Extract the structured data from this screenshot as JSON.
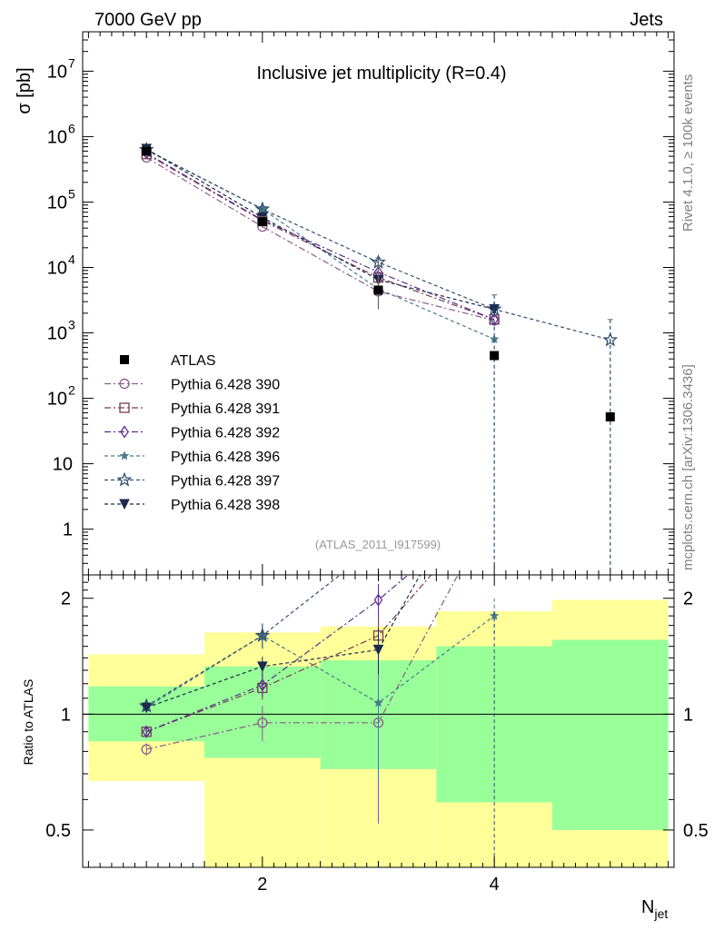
{
  "header": {
    "energy": "7000 GeV pp",
    "category": "Jets"
  },
  "side_labels": {
    "rivet": "Rivet 4.1.0, ≥ 100k events",
    "source": "mcplots.cern.ch [arXiv:1306.3436]"
  },
  "chart_data": {
    "type": "scatter",
    "title": "Inclusive jet multiplicity (R=0.4)",
    "analysis_id": "(ATLAS_2011_I917599)",
    "xlabel_main": "N",
    "xlabel_sub": "jet",
    "ylabel": "σ [pb]",
    "ratio_ylabel": "Ratio to ATLAS",
    "xlim": [
      0.45,
      5.55
    ],
    "ylim_main": [
      0.2,
      40000000
    ],
    "ylim_ratio": [
      0.4,
      2.3
    ],
    "x_ticks": [
      {
        "v": 2,
        "label": "2"
      },
      {
        "v": 4,
        "label": "4"
      }
    ],
    "y_ticks_main": [
      {
        "v": 1,
        "label": "1"
      },
      {
        "v": 10,
        "label": "10"
      },
      {
        "v": 100,
        "label": "10",
        "sup": "2"
      },
      {
        "v": 1000,
        "label": "10",
        "sup": "3"
      },
      {
        "v": 10000,
        "label": "10",
        "sup": "4"
      },
      {
        "v": 100000,
        "label": "10",
        "sup": "5"
      },
      {
        "v": 1000000,
        "label": "10",
        "sup": "6"
      },
      {
        "v": 10000000,
        "label": "10",
        "sup": "7"
      }
    ],
    "y_ticks_ratio": [
      {
        "v": 0.5,
        "label": "0.5"
      },
      {
        "v": 1,
        "label": "1"
      },
      {
        "v": 2,
        "label": "2"
      }
    ],
    "ratio_bands": [
      {
        "x0": 0.5,
        "x1": 1.5,
        "lo1": 0.85,
        "hi1": 1.18,
        "lo2": 0.67,
        "hi2": 1.43
      },
      {
        "x0": 1.5,
        "x1": 2.5,
        "lo1": 0.77,
        "hi1": 1.33,
        "lo2": 0.39,
        "hi2": 1.63
      },
      {
        "x0": 2.5,
        "x1": 3.5,
        "lo1": 0.72,
        "hi1": 1.38,
        "lo2": 0.37,
        "hi2": 1.69
      },
      {
        "x0": 3.5,
        "x1": 4.5,
        "lo1": 0.59,
        "hi1": 1.5,
        "lo2": 0.34,
        "hi2": 1.85
      },
      {
        "x0": 4.5,
        "x1": 5.5,
        "lo1": 0.5,
        "hi1": 1.56,
        "lo2": 0.34,
        "hi2": 1.98
      }
    ],
    "band_colors": {
      "inner": "#99ff99",
      "outer": "#ffff99"
    },
    "data": {
      "name": "ATLAS",
      "x": [
        1,
        2,
        3,
        4,
        5
      ],
      "y": [
        600000,
        50000,
        4500,
        450,
        52
      ]
    },
    "series": [
      {
        "name": "Pythia 6.428 390",
        "color": "#8b5a8b",
        "marker": "circle",
        "dash": "7,3,2,3",
        "x": [
          1,
          2,
          3,
          4
        ],
        "y": [
          480000,
          42000,
          4300,
          1550
        ],
        "ratio": [
          0.81,
          0.95,
          0.95,
          3.45
        ],
        "ratio_err": [
          0.03,
          0.1,
          0.43,
          0.6
        ]
      },
      {
        "name": "Pythia 6.428 391",
        "color": "#7a3b52",
        "marker": "square",
        "dash": "7,3,2,3",
        "x": [
          1,
          2,
          3,
          4
        ],
        "y": [
          540000,
          52000,
          7000,
          1600
        ],
        "ratio": [
          0.9,
          1.17,
          1.6,
          3.55
        ],
        "ratio_err": [
          0.03,
          0.08,
          0.2,
          0.6
        ]
      },
      {
        "name": "Pythia 6.428 392",
        "color": "#5c2d91",
        "marker": "diamond",
        "dash": "7,3,2,3",
        "x": [
          1,
          2,
          3,
          4
        ],
        "y": [
          560000,
          53000,
          8500,
          1600
        ],
        "ratio": [
          0.9,
          1.19,
          1.98,
          3.55
        ],
        "ratio_err": [
          0.03,
          0.08,
          0.2,
          0.6
        ]
      },
      {
        "name": "Pythia 6.428 396",
        "color": "#4a7a8c",
        "marker": "star-small",
        "dash": "4,3",
        "x": [
          1,
          2,
          3,
          4
        ],
        "y": [
          620000,
          78000,
          4700,
          800
        ],
        "ratio": [
          1.04,
          1.6,
          1.07,
          1.8
        ],
        "ratio_err": [
          0.03,
          0.12,
          0.4,
          0.2
        ]
      },
      {
        "name": "Pythia 6.428 397",
        "color": "#2f4f6f",
        "marker": "star",
        "dash": "4,3",
        "x": [
          1,
          2,
          3,
          4,
          5
        ],
        "y": [
          630000,
          78000,
          12000,
          2300,
          780
        ],
        "ratio": [
          1.05,
          1.6,
          2.75,
          5.1,
          15.0
        ],
        "ratio_err": [
          0.03,
          0.12,
          0.3,
          0.6,
          2.0
        ]
      },
      {
        "name": "Pythia 6.428 398",
        "color": "#1c2a4f",
        "marker": "triangle-down",
        "dash": "4,3",
        "x": [
          1,
          2,
          3,
          4
        ],
        "y": [
          650000,
          58000,
          6500,
          2300
        ],
        "ratio": [
          1.04,
          1.33,
          1.47,
          5.1
        ],
        "ratio_err": [
          0.03,
          0.08,
          0.2,
          0.6
        ]
      }
    ],
    "errors_main": {
      "x": [
        1,
        2,
        3,
        4,
        5
      ],
      "lo": [
        480000,
        40000,
        2300,
        0.1,
        0.1
      ],
      "hi": [
        700000,
        60000,
        14000,
        3800,
        1600
      ]
    }
  }
}
